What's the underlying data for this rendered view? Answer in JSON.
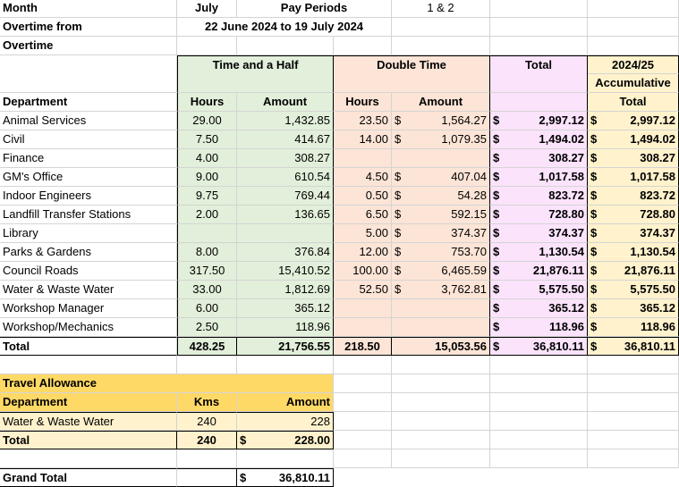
{
  "header": {
    "month_label": "Month",
    "month_value": "July",
    "pay_periods_label": "Pay Periods",
    "pay_periods_value": "1 & 2",
    "overtime_from_label": "Overtime from",
    "overtime_from_value": "22 June 2024 to 19 July 2024",
    "overtime_label": "Overtime"
  },
  "groups": {
    "time_and_half": "Time and a Half",
    "double_time": "Double Time",
    "total": "Total",
    "accum_line1": "2024/25",
    "accum_line2": "Accumulative",
    "accum_line3": "Total"
  },
  "columns": {
    "department": "Department",
    "hours": "Hours",
    "amount": "Amount"
  },
  "currency_symbol": "$",
  "rows": [
    {
      "dept": "Animal Services",
      "th_hours": "29.00",
      "th_amount": "1,432.85",
      "dt_hours": "23.50",
      "dt_cur": "$",
      "dt_amount": "1,564.27",
      "total": "2,997.12",
      "accum": "2,997.12"
    },
    {
      "dept": "Civil",
      "th_hours": "7.50",
      "th_amount": "414.67",
      "dt_hours": "14.00",
      "dt_cur": "$",
      "dt_amount": "1,079.35",
      "total": "1,494.02",
      "accum": "1,494.02"
    },
    {
      "dept": "Finance",
      "th_hours": "4.00",
      "th_amount": "308.27",
      "dt_hours": "",
      "dt_cur": "",
      "dt_amount": "",
      "total": "308.27",
      "accum": "308.27"
    },
    {
      "dept": "GM's Office",
      "th_hours": "9.00",
      "th_amount": "610.54",
      "dt_hours": "4.50",
      "dt_cur": "$",
      "dt_amount": "407.04",
      "total": "1,017.58",
      "accum": "1,017.58"
    },
    {
      "dept": "Indoor Engineers",
      "th_hours": "9.75",
      "th_amount": "769.44",
      "dt_hours": "0.50",
      "dt_cur": "$",
      "dt_amount": "54.28",
      "total": "823.72",
      "accum": "823.72"
    },
    {
      "dept": "Landfill Transfer Stations",
      "th_hours": "2.00",
      "th_amount": "136.65",
      "dt_hours": "6.50",
      "dt_cur": "$",
      "dt_amount": "592.15",
      "total": "728.80",
      "accum": "728.80"
    },
    {
      "dept": "Library",
      "th_hours": "",
      "th_amount": "",
      "dt_hours": "5.00",
      "dt_cur": "$",
      "dt_amount": "374.37",
      "total": "374.37",
      "accum": "374.37"
    },
    {
      "dept": "Parks & Gardens",
      "th_hours": "8.00",
      "th_amount": "376.84",
      "dt_hours": "12.00",
      "dt_cur": "$",
      "dt_amount": "753.70",
      "total": "1,130.54",
      "accum": "1,130.54"
    },
    {
      "dept": "Council Roads",
      "th_hours": "317.50",
      "th_amount": "15,410.52",
      "dt_hours": "100.00",
      "dt_cur": "$",
      "dt_amount": "6,465.59",
      "total": "21,876.11",
      "accum": "21,876.11"
    },
    {
      "dept": "Water & Waste Water",
      "th_hours": "33.00",
      "th_amount": "1,812.69",
      "dt_hours": "52.50",
      "dt_cur": "$",
      "dt_amount": "3,762.81",
      "total": "5,575.50",
      "accum": "5,575.50"
    },
    {
      "dept": "Workshop Manager",
      "th_hours": "6.00",
      "th_amount": "365.12",
      "dt_hours": "",
      "dt_cur": "",
      "dt_amount": "",
      "total": "365.12",
      "accum": "365.12"
    },
    {
      "dept": "Workshop/Mechanics",
      "th_hours": "2.50",
      "th_amount": "118.96",
      "dt_hours": "",
      "dt_cur": "",
      "dt_amount": "",
      "total": "118.96",
      "accum": "118.96"
    }
  ],
  "totals": {
    "label": "Total",
    "th_hours": "428.25",
    "th_amount": "21,756.55",
    "dt_hours": "218.50",
    "dt_amount": "15,053.56",
    "total": "36,810.11",
    "accum": "36,810.11"
  },
  "travel": {
    "title": "Travel Allowance",
    "dept_header": "Department",
    "kms_header": "Kms",
    "amount_header": "Amount",
    "row": {
      "dept": "Water & Waste Water",
      "kms": "240",
      "amount": "228"
    },
    "total_label": "Total",
    "total_kms": "240",
    "total_amount": "228.00"
  },
  "grand_total": {
    "label": "Grand Total",
    "amount": "36,810.11"
  }
}
